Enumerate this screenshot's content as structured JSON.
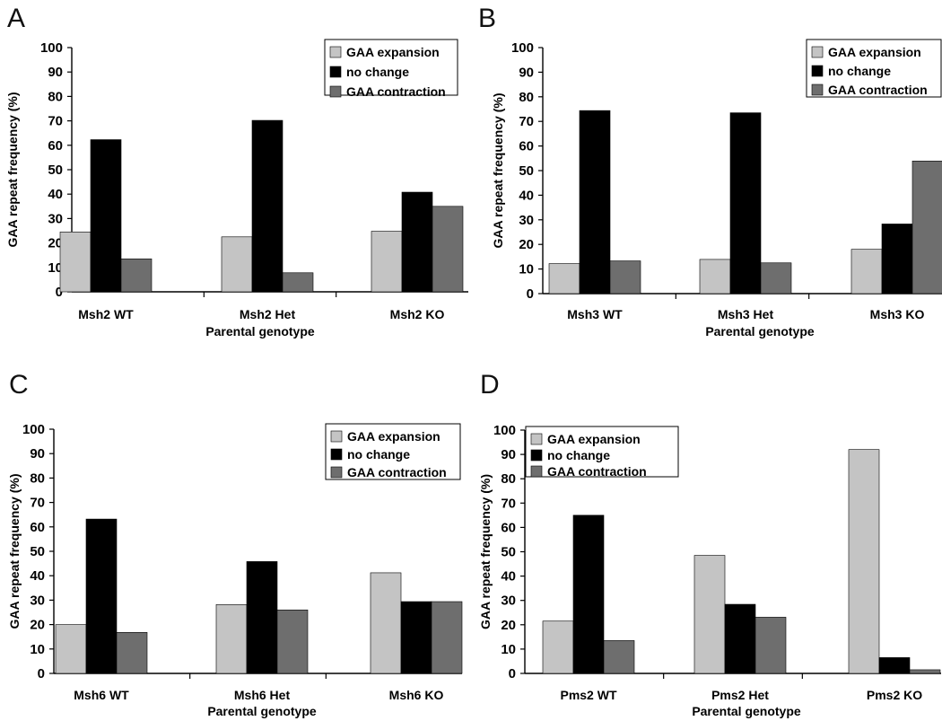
{
  "figure": {
    "colors": {
      "GAA expansion": "#c4c4c4",
      "no change": "#000000",
      "GAA contraction": "#6e6e6e"
    }
  },
  "chart_data": [
    {
      "type": "bar",
      "panel_label": "A",
      "categories": [
        "Msh2 WT",
        "Msh2 Het",
        "Msh2 KO"
      ],
      "series": [
        {
          "name": "GAA expansion",
          "values": [
            24.5,
            22.5,
            24.8
          ]
        },
        {
          "name": "no change",
          "values": [
            62.3,
            70.2,
            40.8
          ]
        },
        {
          "name": "GAA contraction",
          "values": [
            13.5,
            7.8,
            35.0
          ]
        }
      ],
      "xlabel": "Parental genotype",
      "ylabel": "GAA repeat frequency (%)",
      "ylim": [
        0,
        100
      ],
      "yticks": [
        0,
        10,
        20,
        30,
        40,
        50,
        60,
        70,
        80,
        90,
        100
      ],
      "legend": "top-right"
    },
    {
      "type": "bar",
      "panel_label": "B",
      "categories": [
        "Msh3 WT",
        "Msh3 Het",
        "Msh3 KO"
      ],
      "series": [
        {
          "name": "GAA expansion",
          "values": [
            12.2,
            13.9,
            18.0
          ]
        },
        {
          "name": "no change",
          "values": [
            74.4,
            73.5,
            28.3
          ]
        },
        {
          "name": "GAA contraction",
          "values": [
            13.3,
            12.5,
            53.9
          ]
        }
      ],
      "xlabel": "Parental genotype",
      "ylabel": "GAA repeat frequency (%)",
      "ylim": [
        0,
        100
      ],
      "yticks": [
        0,
        10,
        20,
        30,
        40,
        50,
        60,
        70,
        80,
        90,
        100
      ],
      "legend": "top-right"
    },
    {
      "type": "bar",
      "panel_label": "C",
      "categories": [
        "Msh6 WT",
        "Msh6 Het",
        "Msh6 KO"
      ],
      "series": [
        {
          "name": "GAA expansion",
          "values": [
            20.0,
            28.2,
            41.2
          ]
        },
        {
          "name": "no change",
          "values": [
            63.2,
            45.8,
            29.4
          ]
        },
        {
          "name": "GAA contraction",
          "values": [
            16.8,
            26.0,
            29.4
          ]
        }
      ],
      "xlabel": "Parental genotype",
      "ylabel": "GAA repeat frequency (%)",
      "ylim": [
        0,
        100
      ],
      "yticks": [
        0,
        10,
        20,
        30,
        40,
        50,
        60,
        70,
        80,
        90,
        100
      ],
      "legend": "top-right"
    },
    {
      "type": "bar",
      "panel_label": "D",
      "categories": [
        "Pms2 WT",
        "Pms2 Het",
        "Pms2 KO"
      ],
      "series": [
        {
          "name": "GAA expansion",
          "values": [
            21.5,
            48.5,
            92.0
          ]
        },
        {
          "name": "no change",
          "values": [
            65.0,
            28.4,
            6.5
          ]
        },
        {
          "name": "GAA contraction",
          "values": [
            13.5,
            23.1,
            1.5
          ]
        }
      ],
      "xlabel": "Parental genotype",
      "ylabel": "GAA repeat frequency (%)",
      "ylim": [
        0,
        100
      ],
      "yticks": [
        0,
        10,
        20,
        30,
        40,
        50,
        60,
        70,
        80,
        90,
        100
      ],
      "legend": "top-left"
    }
  ]
}
